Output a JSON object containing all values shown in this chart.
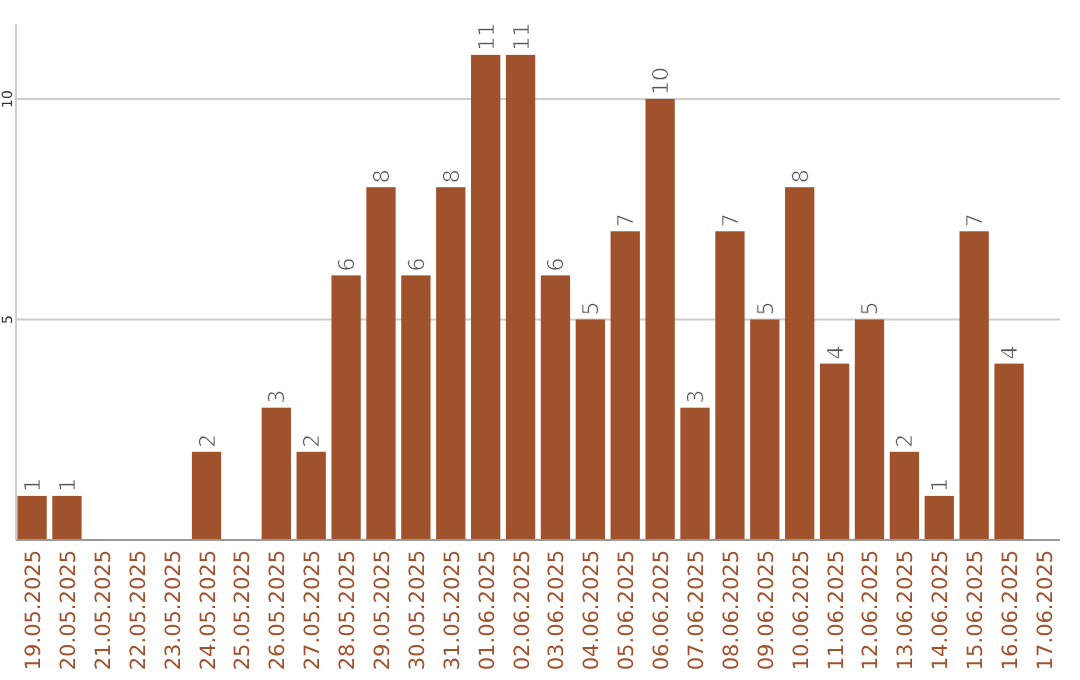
{
  "chart_data": {
    "type": "bar",
    "categories": [
      "19.05.2025",
      "20.05.2025",
      "21.05.2025",
      "22.05.2025",
      "23.05.2025",
      "24.05.2025",
      "25.05.2025",
      "26.05.2025",
      "27.05.2025",
      "28.05.2025",
      "29.05.2025",
      "30.05.2025",
      "31.05.2025",
      "01.06.2025",
      "02.06.2025",
      "03.06.2025",
      "04.06.2025",
      "05.06.2025",
      "06.06.2025",
      "07.06.2025",
      "08.06.2025",
      "09.06.2025",
      "10.06.2025",
      "11.06.2025",
      "12.06.2025",
      "13.06.2025",
      "14.06.2025",
      "15.06.2025",
      "16.06.2025",
      "17.06.2025"
    ],
    "values": [
      1,
      1,
      0,
      0,
      0,
      2,
      0,
      3,
      2,
      6,
      8,
      6,
      8,
      11,
      11,
      6,
      5,
      7,
      10,
      3,
      7,
      5,
      8,
      4,
      5,
      2,
      1,
      7,
      4,
      0
    ],
    "value_labels": [
      "1",
      "1",
      null,
      null,
      null,
      "2",
      null,
      "3",
      "2",
      "6",
      "8",
      "6",
      "8",
      "11",
      "11",
      "6",
      "5",
      "7",
      "10",
      "3",
      "7",
      "5",
      "8",
      "4",
      "5",
      "2",
      "1",
      "7",
      "4",
      null
    ],
    "color": "#a0522d",
    "ylim": [
      0,
      11.7
    ],
    "yticks": [
      5,
      10
    ],
    "grid": "y"
  }
}
